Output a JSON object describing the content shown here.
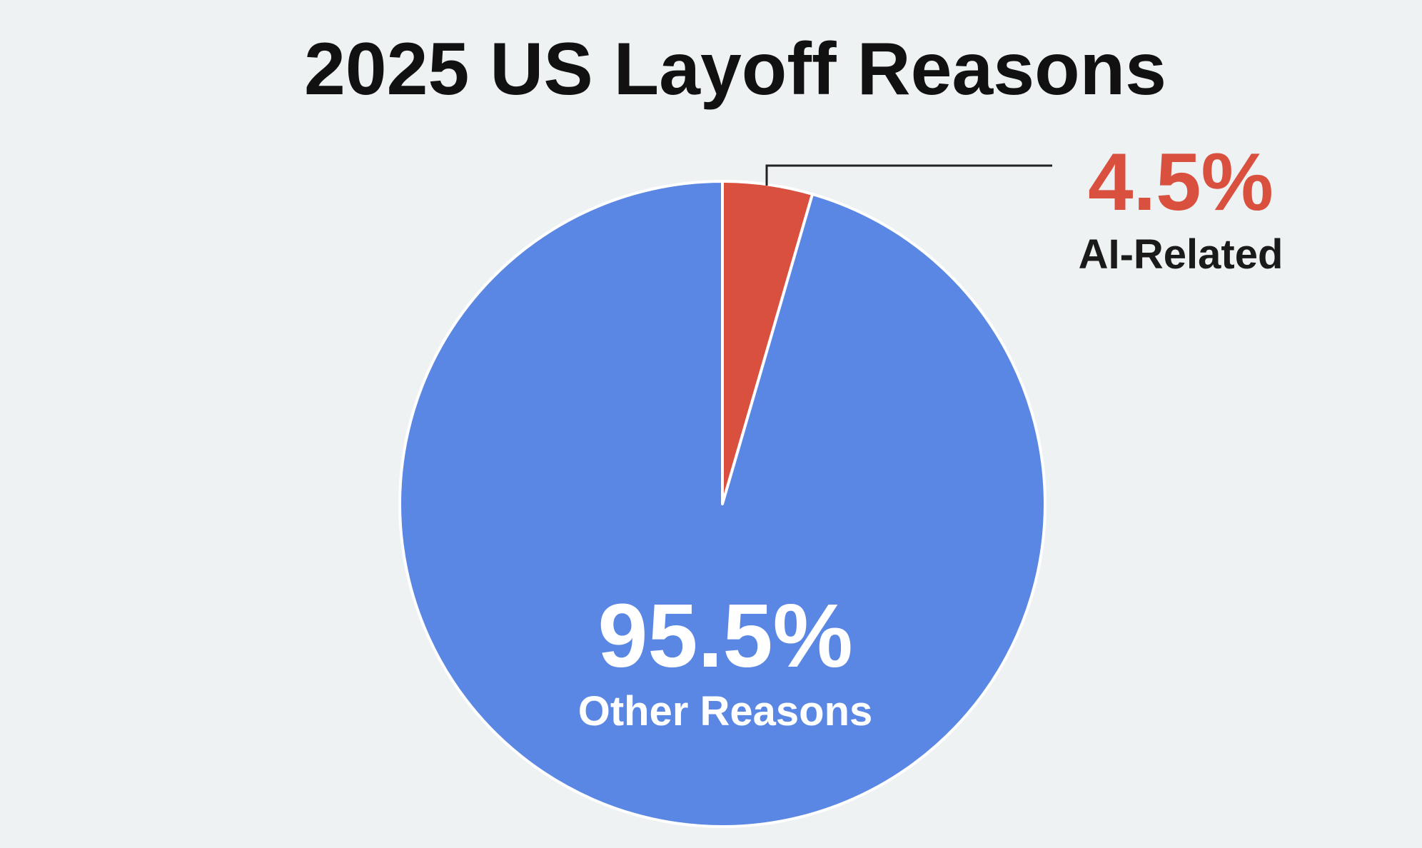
{
  "chart_data": {
    "type": "pie",
    "title": "2025 US Layoff Reasons",
    "start_angle_deg": 0,
    "direction": "clockwise",
    "slices": [
      {
        "label": "AI-Related",
        "value": 4.5,
        "display": "4.5%",
        "color": "#d9503f",
        "label_color": "#d9503f"
      },
      {
        "label": "Other Reasons",
        "value": 95.5,
        "display": "95.5%",
        "color": "#5b87e4",
        "label_color": "#ffffff"
      }
    ]
  },
  "colors": {
    "background": "#eef2f3",
    "title": "#111111",
    "leader_line": "#222222",
    "slice_separator": "#ffffff",
    "callout_category": "#1a1a1a"
  }
}
